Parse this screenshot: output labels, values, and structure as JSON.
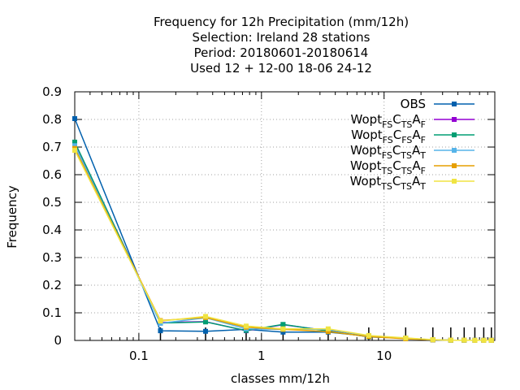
{
  "chart_data": {
    "type": "line",
    "title_lines": [
      "Frequency  for 12h Precipitation (mm/12h)",
      "Selection: Ireland      28 stations",
      "Period: 20180601-20180614",
      "Used  12 + 12-00 18-06 24-12"
    ],
    "xlabel": "classes mm/12h",
    "ylabel": "Frequency",
    "xscale": "log",
    "xlim": [
      0.03,
      80
    ],
    "ylim": [
      0,
      0.9
    ],
    "grid": true,
    "legend_position": "top-right",
    "y_ticks": [
      "0",
      "0.1",
      "0.2",
      "0.3",
      "0.4",
      "0.5",
      "0.6",
      "0.7",
      "0.8",
      "0.9"
    ],
    "x_ticks": [
      "0.1",
      "1",
      "10"
    ],
    "x": [
      0.03,
      0.15,
      0.35,
      0.75,
      1.5,
      3.5,
      7.5,
      15,
      25,
      35,
      45,
      55,
      65,
      75
    ],
    "series": [
      {
        "name": "OBS",
        "parts": [],
        "color": "#0060ad",
        "values": [
          0.803,
          0.035,
          0.033,
          0.04,
          0.03,
          0.03,
          0.015,
          0.007,
          0.002,
          0.001,
          0.001,
          0.0005,
          0.0005,
          0.0005
        ]
      },
      {
        "name": "",
        "parts": [
          {
            "t": "Wopt"
          },
          {
            "t": "FS",
            "s": true
          },
          {
            "t": "C"
          },
          {
            "t": "TS",
            "s": true
          },
          {
            "t": "A"
          },
          {
            "t": "F",
            "s": true
          }
        ],
        "color": "#9400d3",
        "values": [
          0.716,
          0.065,
          0.068,
          0.035,
          0.057,
          0.035,
          0.013,
          0.008,
          0.002,
          0.001,
          0.001,
          0.0005,
          0.0005,
          0.0005
        ]
      },
      {
        "name": "",
        "parts": [
          {
            "t": "Wopt"
          },
          {
            "t": "FS",
            "s": true
          },
          {
            "t": "C"
          },
          {
            "t": "FS",
            "s": true
          },
          {
            "t": "A"
          },
          {
            "t": "F",
            "s": true
          }
        ],
        "color": "#009e73",
        "values": [
          0.718,
          0.063,
          0.067,
          0.036,
          0.058,
          0.034,
          0.013,
          0.008,
          0.002,
          0.001,
          0.001,
          0.0005,
          0.0005,
          0.0005
        ]
      },
      {
        "name": "",
        "parts": [
          {
            "t": "Wopt"
          },
          {
            "t": "FS",
            "s": true
          },
          {
            "t": "C"
          },
          {
            "t": "TS",
            "s": true
          },
          {
            "t": "A"
          },
          {
            "t": "T",
            "s": true
          }
        ],
        "color": "#56b4e9",
        "values": [
          0.705,
          0.062,
          0.082,
          0.042,
          0.04,
          0.04,
          0.017,
          0.008,
          0.002,
          0.001,
          0.001,
          0.0005,
          0.0005,
          0.0005
        ]
      },
      {
        "name": "",
        "parts": [
          {
            "t": "Wopt"
          },
          {
            "t": "TS",
            "s": true
          },
          {
            "t": "C"
          },
          {
            "t": "TS",
            "s": true
          },
          {
            "t": "A"
          },
          {
            "t": "F",
            "s": true
          }
        ],
        "color": "#e69f00",
        "values": [
          0.695,
          0.072,
          0.083,
          0.048,
          0.04,
          0.032,
          0.014,
          0.006,
          0.002,
          0.001,
          0.001,
          0.0005,
          0.0005,
          0.0005
        ]
      },
      {
        "name": "",
        "parts": [
          {
            "t": "Wopt"
          },
          {
            "t": "TS",
            "s": true
          },
          {
            "t": "C"
          },
          {
            "t": "TS",
            "s": true
          },
          {
            "t": "A"
          },
          {
            "t": "T",
            "s": true
          }
        ],
        "color": "#f0e442",
        "values": [
          0.688,
          0.07,
          0.087,
          0.052,
          0.042,
          0.042,
          0.018,
          0.009,
          0.003,
          0.001,
          0.001,
          0.0005,
          0.0005,
          0.0005
        ]
      }
    ]
  }
}
